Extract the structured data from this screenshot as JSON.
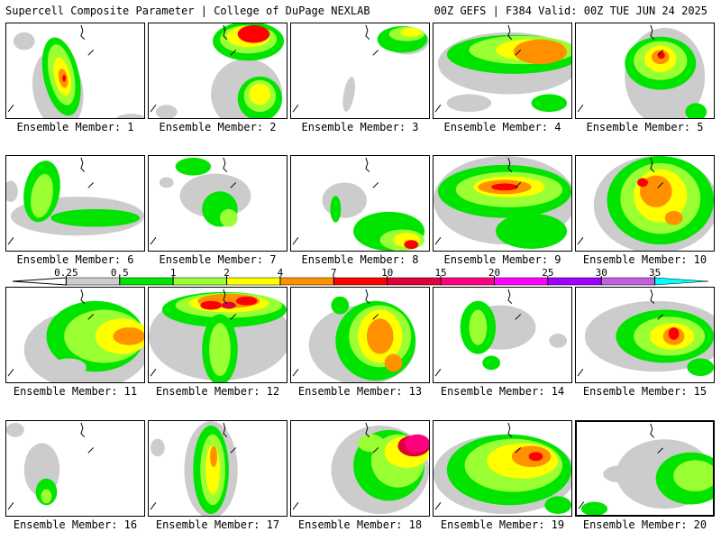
{
  "header": {
    "title": "Supercell Composite Parameter | College of DuPage NEXLAB",
    "run_info": "00Z GEFS | F384 Valid: 00Z TUE JUN 24 2025"
  },
  "members": [
    {
      "label": "Ensemble Member: 1"
    },
    {
      "label": "Ensemble Member: 2"
    },
    {
      "label": "Ensemble Member: 3"
    },
    {
      "label": "Ensemble Member: 4"
    },
    {
      "label": "Ensemble Member: 5"
    },
    {
      "label": "Ensemble Member: 6"
    },
    {
      "label": "Ensemble Member: 7"
    },
    {
      "label": "Ensemble Member: 8"
    },
    {
      "label": "Ensemble Member: 9"
    },
    {
      "label": "Ensemble Member: 10"
    },
    {
      "label": "Ensemble Member: 11"
    },
    {
      "label": "Ensemble Member: 12"
    },
    {
      "label": "Ensemble Member: 13"
    },
    {
      "label": "Ensemble Member: 14"
    },
    {
      "label": "Ensemble Member: 15"
    },
    {
      "label": "Ensemble Member: 16"
    },
    {
      "label": "Ensemble Member: 17"
    },
    {
      "label": "Ensemble Member: 18"
    },
    {
      "label": "Ensemble Member: 19"
    },
    {
      "label": "Ensemble Member: 20",
      "selected": true
    }
  ],
  "colorbar": {
    "levels": [
      "0.25",
      "0.5",
      "1",
      "2",
      "4",
      "7",
      "10",
      "15",
      "20",
      "25",
      "30",
      "35"
    ],
    "colors": [
      "#cccccc",
      "#00e400",
      "#9aff33",
      "#ffff00",
      "#ff9100",
      "#ff0000",
      "#e0003c",
      "#ff0080",
      "#ff00ff",
      "#a000ff",
      "#c060e0",
      "#00ffff"
    ]
  },
  "colors": {
    "light_gray": "#cccccc",
    "green": "#00e400",
    "light_green": "#9aff33",
    "yellow": "#ffff00",
    "orange": "#ff9100",
    "red": "#ff0000",
    "crimson": "#e0003c",
    "pink": "#ff0080"
  }
}
